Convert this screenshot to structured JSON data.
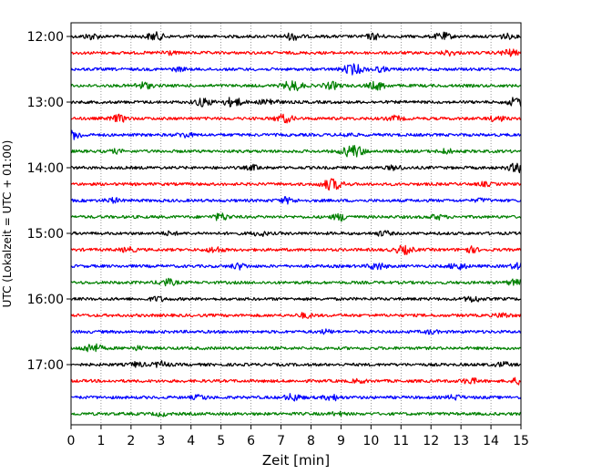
{
  "chart_data": {
    "type": "line",
    "title": "",
    "xlabel": "Zeit  [min]",
    "ylabel": "UTC (Lokalzeit = UTC + 01:00)",
    "xlim": [
      0,
      15
    ],
    "x_ticks": [
      0,
      1,
      2,
      3,
      4,
      5,
      6,
      7,
      8,
      9,
      10,
      11,
      12,
      13,
      14,
      15
    ],
    "y_ticks": [
      "12:00",
      "13:00",
      "14:00",
      "15:00",
      "16:00",
      "17:00"
    ],
    "grid": "vertical dotted lines at each minute",
    "trace_interval_minutes": 15,
    "first_trace": "12:00",
    "trace_count": 24,
    "color_cycle": [
      "#000000",
      "#ff0000",
      "#0000ff",
      "#008000"
    ],
    "series": [
      {
        "start": "12:00",
        "events": [
          [
            0.7,
            5
          ],
          [
            2.8,
            7
          ],
          [
            7.4,
            6
          ],
          [
            10.1,
            5
          ],
          [
            12.4,
            6
          ],
          [
            14.5,
            4
          ]
        ]
      },
      {
        "start": "12:15",
        "events": [
          [
            3.2,
            4
          ],
          [
            12.6,
            4
          ],
          [
            14.6,
            6
          ]
        ]
      },
      {
        "start": "12:30",
        "events": [
          [
            3.6,
            3
          ],
          [
            9.4,
            9
          ],
          [
            10.3,
            4
          ]
        ]
      },
      {
        "start": "12:45",
        "events": [
          [
            2.4,
            6
          ],
          [
            7.4,
            9
          ],
          [
            8.7,
            6
          ],
          [
            10.2,
            7
          ]
        ]
      },
      {
        "start": "13:00",
        "events": [
          [
            4.4,
            7
          ],
          [
            5.4,
            8
          ],
          [
            6.6,
            6
          ],
          [
            14.9,
            9
          ]
        ]
      },
      {
        "start": "13:15",
        "events": [
          [
            1.6,
            6
          ],
          [
            7.1,
            7
          ],
          [
            10.8,
            4
          ],
          [
            14.2,
            5
          ]
        ]
      },
      {
        "start": "13:30",
        "events": [
          [
            0.1,
            7
          ],
          [
            3.8,
            4
          ],
          [
            9.2,
            3
          ]
        ]
      },
      {
        "start": "13:45",
        "events": [
          [
            1.5,
            3
          ],
          [
            9.4,
            11
          ],
          [
            12.5,
            4
          ]
        ]
      },
      {
        "start": "14:00",
        "events": [
          [
            6.1,
            4
          ],
          [
            10.8,
            4
          ],
          [
            14.9,
            8
          ]
        ]
      },
      {
        "start": "14:15",
        "events": [
          [
            8.7,
            10
          ],
          [
            13.8,
            3
          ]
        ]
      },
      {
        "start": "14:30",
        "events": [
          [
            1.4,
            4
          ],
          [
            7.2,
            5
          ],
          [
            13.7,
            3
          ]
        ]
      },
      {
        "start": "14:45",
        "events": [
          [
            5.0,
            6
          ],
          [
            9.0,
            6
          ],
          [
            12.2,
            4
          ]
        ]
      },
      {
        "start": "15:00",
        "events": [
          [
            3.3,
            3
          ],
          [
            6.3,
            4
          ],
          [
            10.4,
            4
          ]
        ]
      },
      {
        "start": "15:15",
        "events": [
          [
            1.9,
            4
          ],
          [
            4.8,
            5
          ],
          [
            11.1,
            7
          ],
          [
            13.3,
            5
          ]
        ]
      },
      {
        "start": "15:30",
        "events": [
          [
            5.6,
            5
          ],
          [
            10.2,
            6
          ],
          [
            12.9,
            6
          ],
          [
            14.9,
            5
          ]
        ]
      },
      {
        "start": "15:45",
        "events": [
          [
            3.2,
            6
          ],
          [
            14.8,
            5
          ]
        ]
      },
      {
        "start": "16:00",
        "events": [
          [
            2.9,
            4
          ],
          [
            13.4,
            5
          ]
        ]
      },
      {
        "start": "16:15",
        "events": [
          [
            7.8,
            4
          ],
          [
            14.4,
            4
          ]
        ]
      },
      {
        "start": "16:30",
        "events": [
          [
            8.5,
            3
          ],
          [
            12.0,
            3
          ]
        ]
      },
      {
        "start": "16:45",
        "events": [
          [
            0.7,
            8
          ],
          [
            2.2,
            3
          ]
        ]
      },
      {
        "start": "17:00",
        "events": [
          [
            2.2,
            4
          ],
          [
            3.0,
            5
          ],
          [
            14.4,
            4
          ]
        ]
      },
      {
        "start": "17:15",
        "events": [
          [
            9.6,
            3
          ],
          [
            13.3,
            5
          ],
          [
            14.9,
            5
          ]
        ]
      },
      {
        "start": "17:30",
        "events": [
          [
            4.3,
            4
          ],
          [
            7.4,
            6
          ],
          [
            8.7,
            5
          ],
          [
            12.8,
            4
          ]
        ]
      },
      {
        "start": "17:45",
        "events": [
          [
            3.0,
            3
          ],
          [
            8.9,
            3
          ]
        ]
      }
    ]
  }
}
